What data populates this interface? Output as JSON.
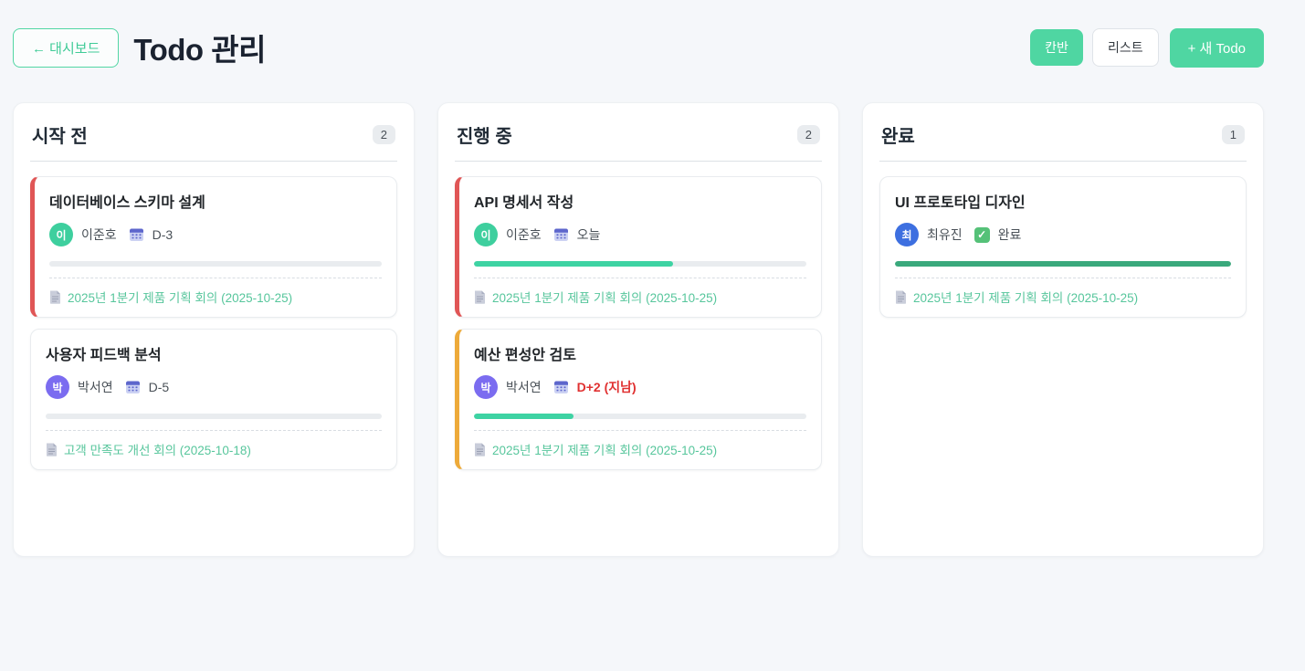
{
  "header": {
    "back_label": "← 대시보드",
    "title": "Todo 관리",
    "view_kanban_label": "칸반",
    "view_list_label": "리스트",
    "new_todo_label": "+ 새 Todo"
  },
  "colors": {
    "accent_green": "#4fd6a2",
    "progress_partial": "#3ed3a3",
    "progress_complete": "#3aa97c",
    "overdue_red": "#e03131",
    "card_accent_red": "#e05656",
    "card_accent_amber": "#edaa3a",
    "link_green": "#57c69c",
    "page_background": "#f5f7fa"
  },
  "columns": [
    {
      "title": "시작 전",
      "count": "2",
      "cards": [
        {
          "title": "데이터베이스 스키마 설계",
          "accent": "#e05656",
          "avatar_text": "이",
          "avatar_color": "#3ecf9e",
          "assignee": "이준호",
          "due": "D-3",
          "overdue": false,
          "done": false,
          "progress": 0,
          "progress_color": "#3ed3a3",
          "link": "2025년 1분기 제품 기획 회의 (2025-10-25)"
        },
        {
          "title": "사용자 피드백 분석",
          "accent": null,
          "avatar_text": "박",
          "avatar_color": "#7b6cf0",
          "assignee": "박서연",
          "due": "D-5",
          "overdue": false,
          "done": false,
          "progress": 0,
          "progress_color": "#3ed3a3",
          "link": "고객 만족도 개선 회의 (2025-10-18)"
        }
      ]
    },
    {
      "title": "진행 중",
      "count": "2",
      "cards": [
        {
          "title": "API 명세서 작성",
          "accent": "#e05656",
          "avatar_text": "이",
          "avatar_color": "#3ecf9e",
          "assignee": "이준호",
          "due": "오늘",
          "overdue": false,
          "done": false,
          "progress": 60,
          "progress_color": "#3ed3a3",
          "link": "2025년 1분기 제품 기획 회의 (2025-10-25)"
        },
        {
          "title": "예산 편성안 검토",
          "accent": "#edaa3a",
          "avatar_text": "박",
          "avatar_color": "#7b6cf0",
          "assignee": "박서연",
          "due": "D+2 (지남)",
          "overdue": true,
          "done": false,
          "progress": 30,
          "progress_color": "#3ed3a3",
          "link": "2025년 1분기 제품 기획 회의 (2025-10-25)"
        }
      ]
    },
    {
      "title": "완료",
      "count": "1",
      "cards": [
        {
          "title": "UI 프로토타입 디자인",
          "accent": null,
          "avatar_text": "최",
          "avatar_color": "#3d6fe0",
          "assignee": "최유진",
          "due": "완료",
          "overdue": false,
          "done": true,
          "progress": 100,
          "progress_color": "#3aa97c",
          "link": "2025년 1분기 제품 기획 회의 (2025-10-25)"
        }
      ]
    }
  ]
}
